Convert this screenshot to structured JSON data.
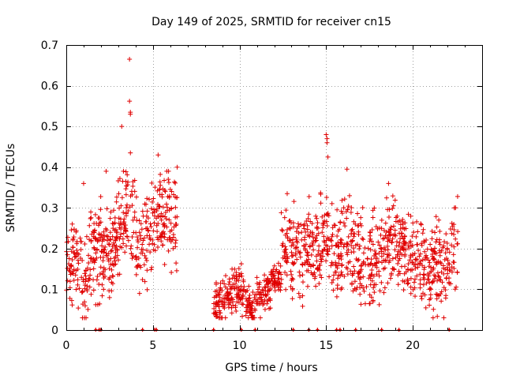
{
  "chart_data": {
    "type": "scatter",
    "title": "Day 149 of 2025, SRMTID for receiver cn15",
    "xlabel": "GPS time / hours",
    "ylabel": "SRMTID / TECUs",
    "xlim": [
      0,
      24
    ],
    "ylim": [
      0,
      0.7
    ],
    "x_ticks": [
      0,
      5,
      10,
      15,
      20
    ],
    "x_tick_labels": [
      "0",
      "5",
      "10",
      "15",
      "20"
    ],
    "y_ticks": [
      0,
      0.1,
      0.2,
      0.3,
      0.4,
      0.5,
      0.6,
      0.7
    ],
    "y_tick_labels": [
      "0",
      "0.1",
      "0.2",
      "0.3",
      "0.4",
      "0.5",
      "0.6",
      "0.7"
    ],
    "grid": true,
    "marker": "+",
    "marker_color": "#e00000",
    "series": [
      {
        "name": "SRMTID",
        "segments": [
          {
            "x_start": 0.0,
            "x_end": 6.4,
            "count": 520,
            "profile": [
              [
                0.0,
                0.19
              ],
              [
                0.4,
                0.17
              ],
              [
                0.8,
                0.16
              ],
              [
                1.0,
                0.1
              ],
              [
                1.3,
                0.17
              ],
              [
                1.8,
                0.2
              ],
              [
                2.2,
                0.18
              ],
              [
                2.6,
                0.2
              ],
              [
                3.0,
                0.25
              ],
              [
                3.3,
                0.3
              ],
              [
                3.7,
                0.27
              ],
              [
                4.2,
                0.22
              ],
              [
                4.7,
                0.24
              ],
              [
                5.2,
                0.27
              ],
              [
                5.6,
                0.3
              ],
              [
                6.0,
                0.28
              ],
              [
                6.4,
                0.26
              ]
            ],
            "spread": 0.085
          },
          {
            "x_start": 8.5,
            "x_end": 12.4,
            "count": 320,
            "profile": [
              [
                8.5,
                0.07
              ],
              [
                9.0,
                0.07
              ],
              [
                9.5,
                0.09
              ],
              [
                10.0,
                0.1
              ],
              [
                10.4,
                0.07
              ],
              [
                10.8,
                0.06
              ],
              [
                11.2,
                0.08
              ],
              [
                11.6,
                0.1
              ],
              [
                12.0,
                0.12
              ],
              [
                12.4,
                0.13
              ]
            ],
            "spread": 0.04
          },
          {
            "x_start": 12.4,
            "x_end": 22.6,
            "count": 820,
            "profile": [
              [
                12.4,
                0.22
              ],
              [
                13.0,
                0.19
              ],
              [
                13.5,
                0.2
              ],
              [
                14.0,
                0.21
              ],
              [
                14.5,
                0.2
              ],
              [
                15.0,
                0.24
              ],
              [
                15.5,
                0.18
              ],
              [
                16.0,
                0.22
              ],
              [
                16.5,
                0.2
              ],
              [
                17.0,
                0.17
              ],
              [
                17.5,
                0.15
              ],
              [
                18.0,
                0.16
              ],
              [
                18.5,
                0.2
              ],
              [
                19.0,
                0.21
              ],
              [
                19.5,
                0.19
              ],
              [
                20.0,
                0.16
              ],
              [
                20.5,
                0.18
              ],
              [
                21.0,
                0.16
              ],
              [
                21.5,
                0.15
              ],
              [
                22.0,
                0.17
              ],
              [
                22.6,
                0.2
              ]
            ],
            "spread": 0.085
          }
        ],
        "extra_points": [
          {
            "x": 3.65,
            "y": 0.665
          },
          {
            "x": 3.65,
            "y": 0.562
          },
          {
            "x": 3.7,
            "y": 0.535
          },
          {
            "x": 3.7,
            "y": 0.53
          },
          {
            "x": 3.2,
            "y": 0.5
          },
          {
            "x": 15.0,
            "y": 0.48
          },
          {
            "x": 15.05,
            "y": 0.47
          },
          {
            "x": 15.05,
            "y": 0.46
          },
          {
            "x": 15.1,
            "y": 0.425
          },
          {
            "x": 16.2,
            "y": 0.395
          },
          {
            "x": 5.3,
            "y": 0.43
          },
          {
            "x": 3.7,
            "y": 0.435
          },
          {
            "x": 2.3,
            "y": 0.39
          },
          {
            "x": 6.4,
            "y": 0.4
          },
          {
            "x": 18.6,
            "y": 0.36
          },
          {
            "x": 1.0,
            "y": 0.36
          },
          {
            "x": 12.75,
            "y": 0.335
          },
          {
            "x": 22.4,
            "y": 0.3
          }
        ],
        "zero_values_x": [
          1.7,
          1.9,
          2.0,
          4.4,
          5.1,
          5.2,
          8.5,
          10.1,
          10.9,
          13.1,
          14.0,
          14.5,
          15.6,
          15.8,
          16.7,
          18.2,
          19.2,
          22.1
        ]
      }
    ]
  }
}
